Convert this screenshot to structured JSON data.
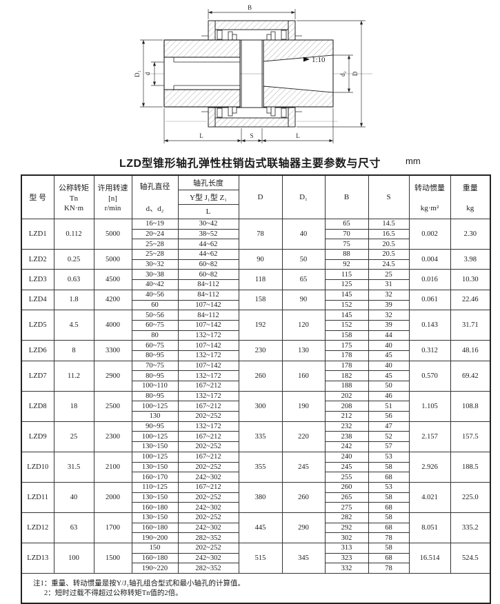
{
  "drawing": {
    "labels": {
      "B": "B",
      "D": "D",
      "D1": "D₁",
      "d": "d",
      "d2": "d₂",
      "taper": "1:10",
      "L_left": "L",
      "S": "S",
      "L_right": "L"
    }
  },
  "title": "LZD型锥形轴孔弹性柱销齿式联轴器主要参数与尺寸",
  "unit": "mm",
  "table": {
    "headers": {
      "model": "型  号",
      "torque1": "公称转矩",
      "torque2": "Tn",
      "torque3": "KN·m",
      "speed1": "许用转速",
      "speed2": "[n]",
      "speed3": "r/min",
      "bore_dia1": "轴孔直径",
      "bore_dia2": "d、d₂",
      "bore_len": "轴孔长度",
      "bore_len_types": "Y型 J₁型 Z₁",
      "bore_len_L": "L",
      "D": "D",
      "D1": "D₁",
      "B": "B",
      "S": "S",
      "inertia1": "转动惯量",
      "inertia2": "kg·m²",
      "weight1": "重量",
      "weight2": "kg"
    },
    "rows": [
      {
        "model": "LZD1",
        "torque": "0.112",
        "speed": "5000",
        "D": "78",
        "D1": "40",
        "inertia": "0.002",
        "weight": "2.30",
        "bores": [
          {
            "d": "16~19",
            "L": "30~42",
            "B": "65",
            "S": "14.5"
          },
          {
            "d": "20~24",
            "L": "38~52",
            "B": "70",
            "S": "16.5"
          },
          {
            "d": "25~28",
            "L": "44~62",
            "B": "75",
            "S": "20.5"
          }
        ]
      },
      {
        "model": "LZD2",
        "torque": "0.25",
        "speed": "5000",
        "D": "90",
        "D1": "50",
        "inertia": "0.004",
        "weight": "3.98",
        "bores": [
          {
            "d": "25~28",
            "L": "44~62",
            "B": "88",
            "S": "20.5"
          },
          {
            "d": "30~32",
            "L": "60~82",
            "B": "92",
            "S": "24.5"
          }
        ]
      },
      {
        "model": "LZD3",
        "torque": "0.63",
        "speed": "4500",
        "D": "118",
        "D1": "65",
        "inertia": "0.016",
        "weight": "10.30",
        "bores": [
          {
            "d": "30~38",
            "L": "60~82",
            "B": "115",
            "S": "25"
          },
          {
            "d": "40~42",
            "L": "84~112",
            "B": "125",
            "S": "31"
          }
        ]
      },
      {
        "model": "LZD4",
        "torque": "1.8",
        "speed": "4200",
        "D": "158",
        "D1": "90",
        "inertia": "0.061",
        "weight": "22.46",
        "bores": [
          {
            "d": "40~56",
            "L": "84~112",
            "B": "145",
            "S": "32"
          },
          {
            "d": "60",
            "L": "107~142",
            "B": "152",
            "S": "39"
          }
        ]
      },
      {
        "model": "LZD5",
        "torque": "4.5",
        "speed": "4000",
        "D": "192",
        "D1": "120",
        "inertia": "0.143",
        "weight": "31.71",
        "bores": [
          {
            "d": "50~56",
            "L": "84~112",
            "B": "145",
            "S": "32"
          },
          {
            "d": "60~75",
            "L": "107~142",
            "B": "152",
            "S": "39"
          },
          {
            "d": "80",
            "L": "132~172",
            "B": "158",
            "S": "44"
          }
        ]
      },
      {
        "model": "LZD6",
        "torque": "8",
        "speed": "3300",
        "D": "230",
        "D1": "130",
        "inertia": "0.312",
        "weight": "48.16",
        "bores": [
          {
            "d": "60~75",
            "L": "107~142",
            "B": "175",
            "S": "40"
          },
          {
            "d": "80~95",
            "L": "132~172",
            "B": "178",
            "S": "45"
          }
        ]
      },
      {
        "model": "LZD7",
        "torque": "11.2",
        "speed": "2900",
        "D": "260",
        "D1": "160",
        "inertia": "0.570",
        "weight": "69.42",
        "bores": [
          {
            "d": "70~75",
            "L": "107~142",
            "B": "178",
            "S": "40"
          },
          {
            "d": "80~95",
            "L": "132~172",
            "B": "182",
            "S": "45"
          },
          {
            "d": "100~110",
            "L": "167~212",
            "B": "188",
            "S": "50"
          }
        ]
      },
      {
        "model": "LZD8",
        "torque": "18",
        "speed": "2500",
        "D": "300",
        "D1": "190",
        "inertia": "1.105",
        "weight": "108.8",
        "bores": [
          {
            "d": "80~95",
            "L": "132~172",
            "B": "202",
            "S": "46"
          },
          {
            "d": "100~125",
            "L": "167~212",
            "B": "208",
            "S": "51"
          },
          {
            "d": "130",
            "L": "202~252",
            "B": "212",
            "S": "56"
          }
        ]
      },
      {
        "model": "LZD9",
        "torque": "25",
        "speed": "2300",
        "D": "335",
        "D1": "220",
        "inertia": "2.157",
        "weight": "157.5",
        "bores": [
          {
            "d": "90~95",
            "L": "132~172",
            "B": "232",
            "S": "47"
          },
          {
            "d": "100~125",
            "L": "167~212",
            "B": "238",
            "S": "52"
          },
          {
            "d": "130~150",
            "L": "202~252",
            "B": "242",
            "S": "57"
          }
        ]
      },
      {
        "model": "LZD10",
        "torque": "31.5",
        "speed": "2100",
        "D": "355",
        "D1": "245",
        "inertia": "2.926",
        "weight": "188.5",
        "bores": [
          {
            "d": "100~125",
            "L": "167~212",
            "B": "240",
            "S": "53"
          },
          {
            "d": "130~150",
            "L": "202~252",
            "B": "245",
            "S": "58"
          },
          {
            "d": "160~170",
            "L": "242~302",
            "B": "255",
            "S": "68"
          }
        ]
      },
      {
        "model": "LZD11",
        "torque": "40",
        "speed": "2000",
        "D": "380",
        "D1": "260",
        "inertia": "4.021",
        "weight": "225.0",
        "bores": [
          {
            "d": "110~125",
            "L": "167~212",
            "B": "260",
            "S": "53"
          },
          {
            "d": "130~150",
            "L": "202~252",
            "B": "265",
            "S": "58"
          },
          {
            "d": "160~180",
            "L": "242~302",
            "B": "275",
            "S": "68"
          }
        ]
      },
      {
        "model": "LZD12",
        "torque": "63",
        "speed": "1700",
        "D": "445",
        "D1": "290",
        "inertia": "8.051",
        "weight": "335.2",
        "bores": [
          {
            "d": "130~150",
            "L": "202~252",
            "B": "282",
            "S": "58"
          },
          {
            "d": "160~180",
            "L": "242~302",
            "B": "292",
            "S": "68"
          },
          {
            "d": "190~200",
            "L": "282~352",
            "B": "302",
            "S": "78"
          }
        ]
      },
      {
        "model": "LZD13",
        "torque": "100",
        "speed": "1500",
        "D": "515",
        "D1": "345",
        "inertia": "16.514",
        "weight": "524.5",
        "bores": [
          {
            "d": "150",
            "L": "202~252",
            "B": "313",
            "S": "58"
          },
          {
            "d": "160~180",
            "L": "242~302",
            "B": "323",
            "S": "68"
          },
          {
            "d": "190~220",
            "L": "282~352",
            "B": "332",
            "S": "78"
          }
        ]
      }
    ]
  },
  "notes": {
    "line1": "注1：重量、转动惯量是按Y/J₁轴孔组合型式和最小轴孔的计算值。",
    "line2": "2：短时过载不得超过公称转矩Tn值的2倍。"
  }
}
